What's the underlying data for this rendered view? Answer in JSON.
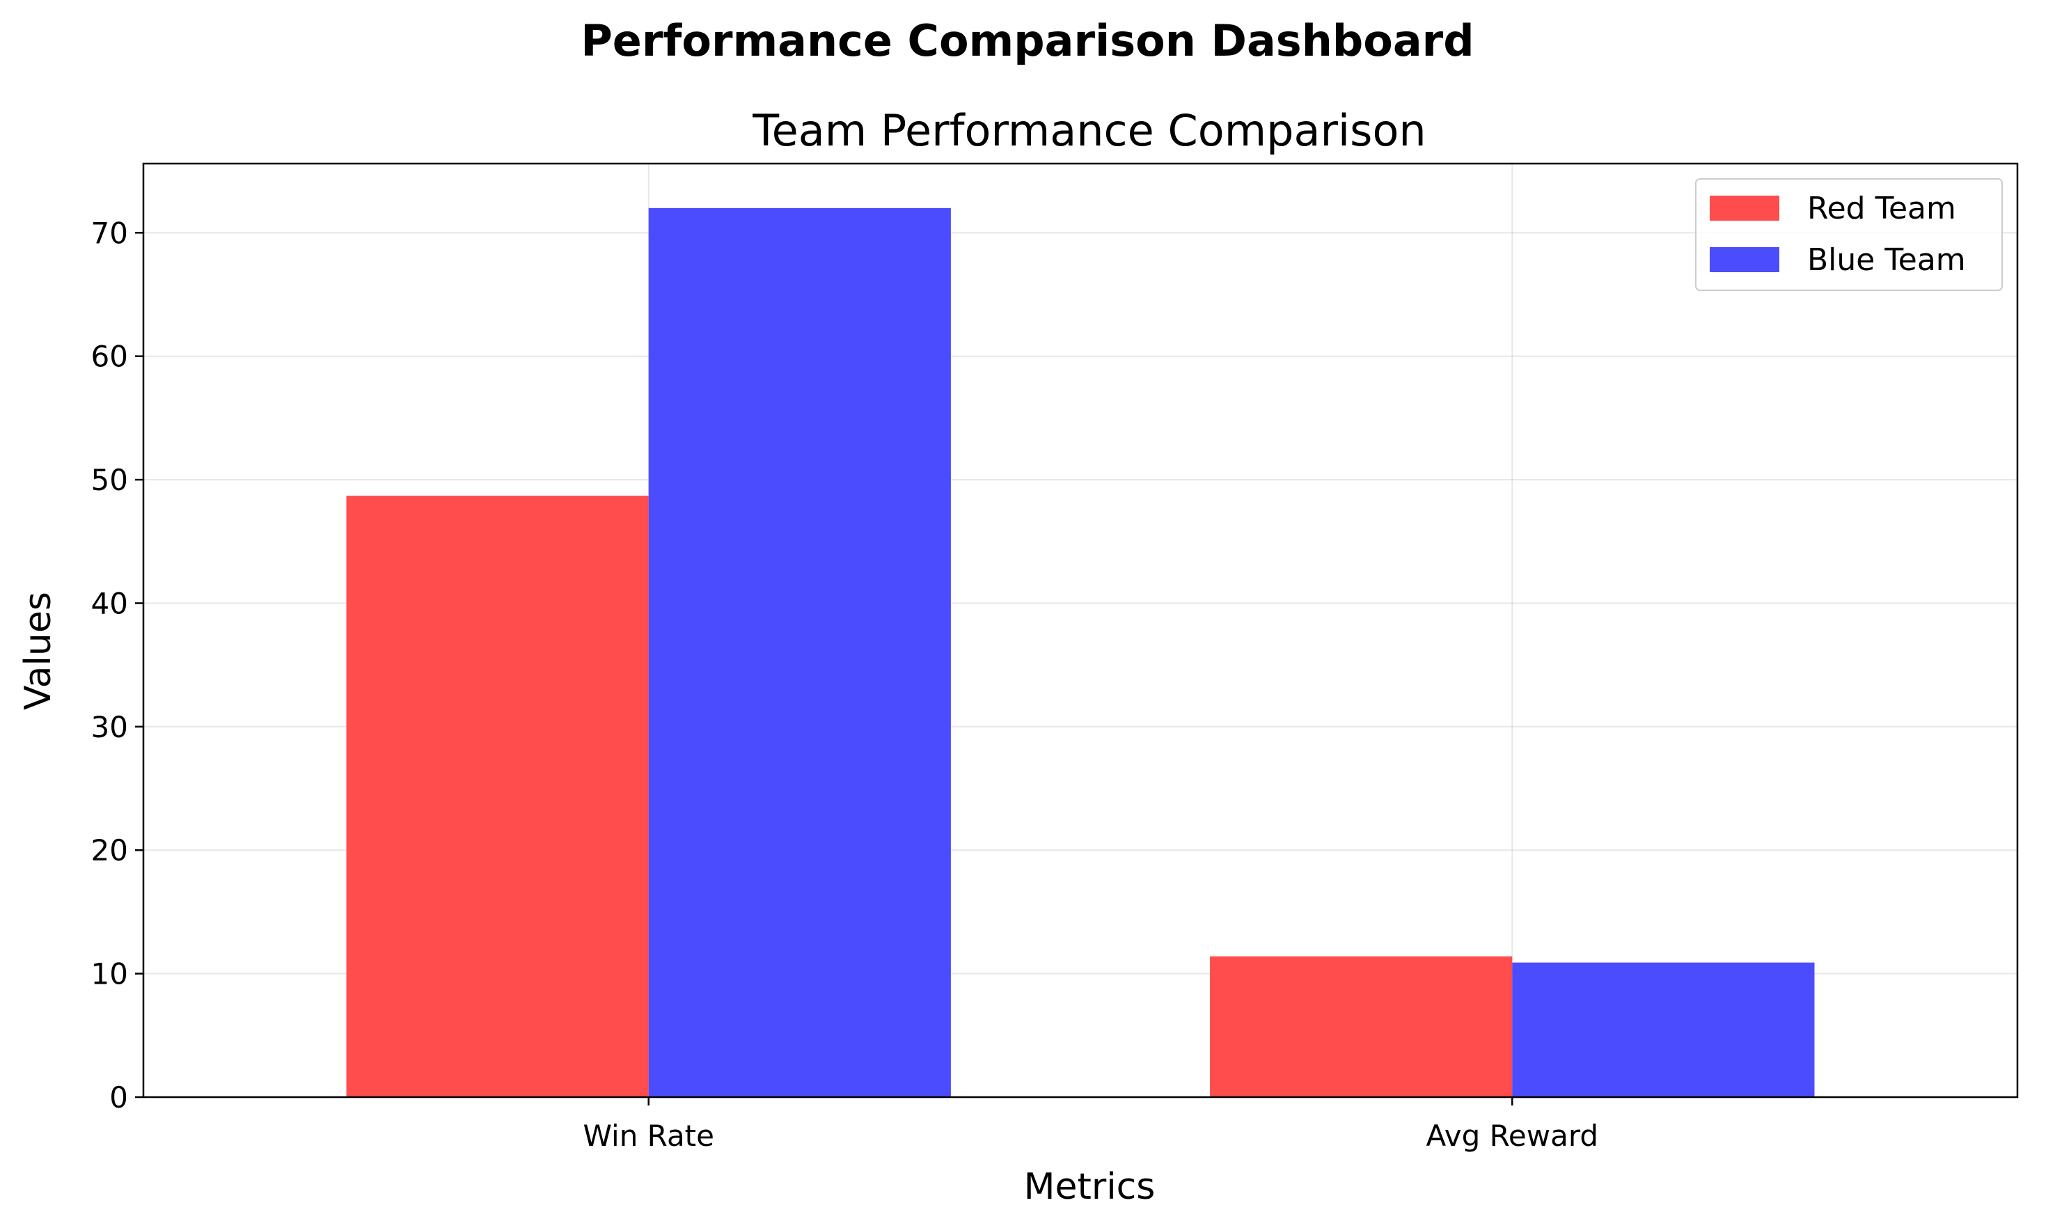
{
  "figure": {
    "suptitle": "Performance Comparison Dashboard"
  },
  "chart_data": {
    "type": "bar",
    "title": "Team Performance Comparison",
    "xlabel": "Metrics",
    "ylabel": "Values",
    "categories": [
      "Win Rate",
      "Avg Reward"
    ],
    "series": [
      {
        "name": "Red Team",
        "color": "#ff4c4c",
        "values": [
          48.7,
          11.4
        ]
      },
      {
        "name": "Blue Team",
        "color": "#4c4cff",
        "values": [
          72.0,
          10.9
        ]
      }
    ],
    "ylim": [
      0,
      75.6
    ],
    "yticks": [
      0,
      10,
      20,
      30,
      40,
      50,
      60,
      70
    ],
    "grid": true,
    "legend_position": "upper right"
  }
}
